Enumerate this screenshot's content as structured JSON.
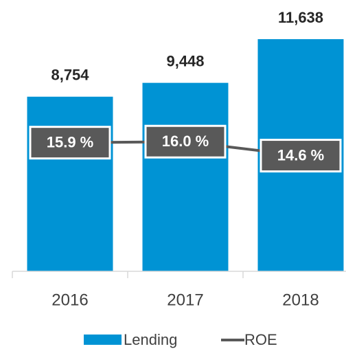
{
  "chart_data": {
    "type": "bar",
    "categories": [
      "2016",
      "2017",
      "2018"
    ],
    "series": [
      {
        "name": "Lending",
        "type": "bar",
        "color": "#0093d4",
        "values": [
          8754,
          9448,
          11638
        ],
        "value_labels": [
          "8,754",
          "9,448",
          "11,638"
        ]
      },
      {
        "name": "ROE",
        "type": "line",
        "axis": "y2",
        "color": "#595959",
        "values": [
          15.9,
          16.0,
          14.6
        ],
        "value_labels": [
          "15.9 %",
          "16.0 %",
          "14.6 %"
        ]
      }
    ],
    "ylim": [
      0,
      12000
    ],
    "y2lim": [
      3,
      27
    ],
    "legend": "bottom"
  }
}
